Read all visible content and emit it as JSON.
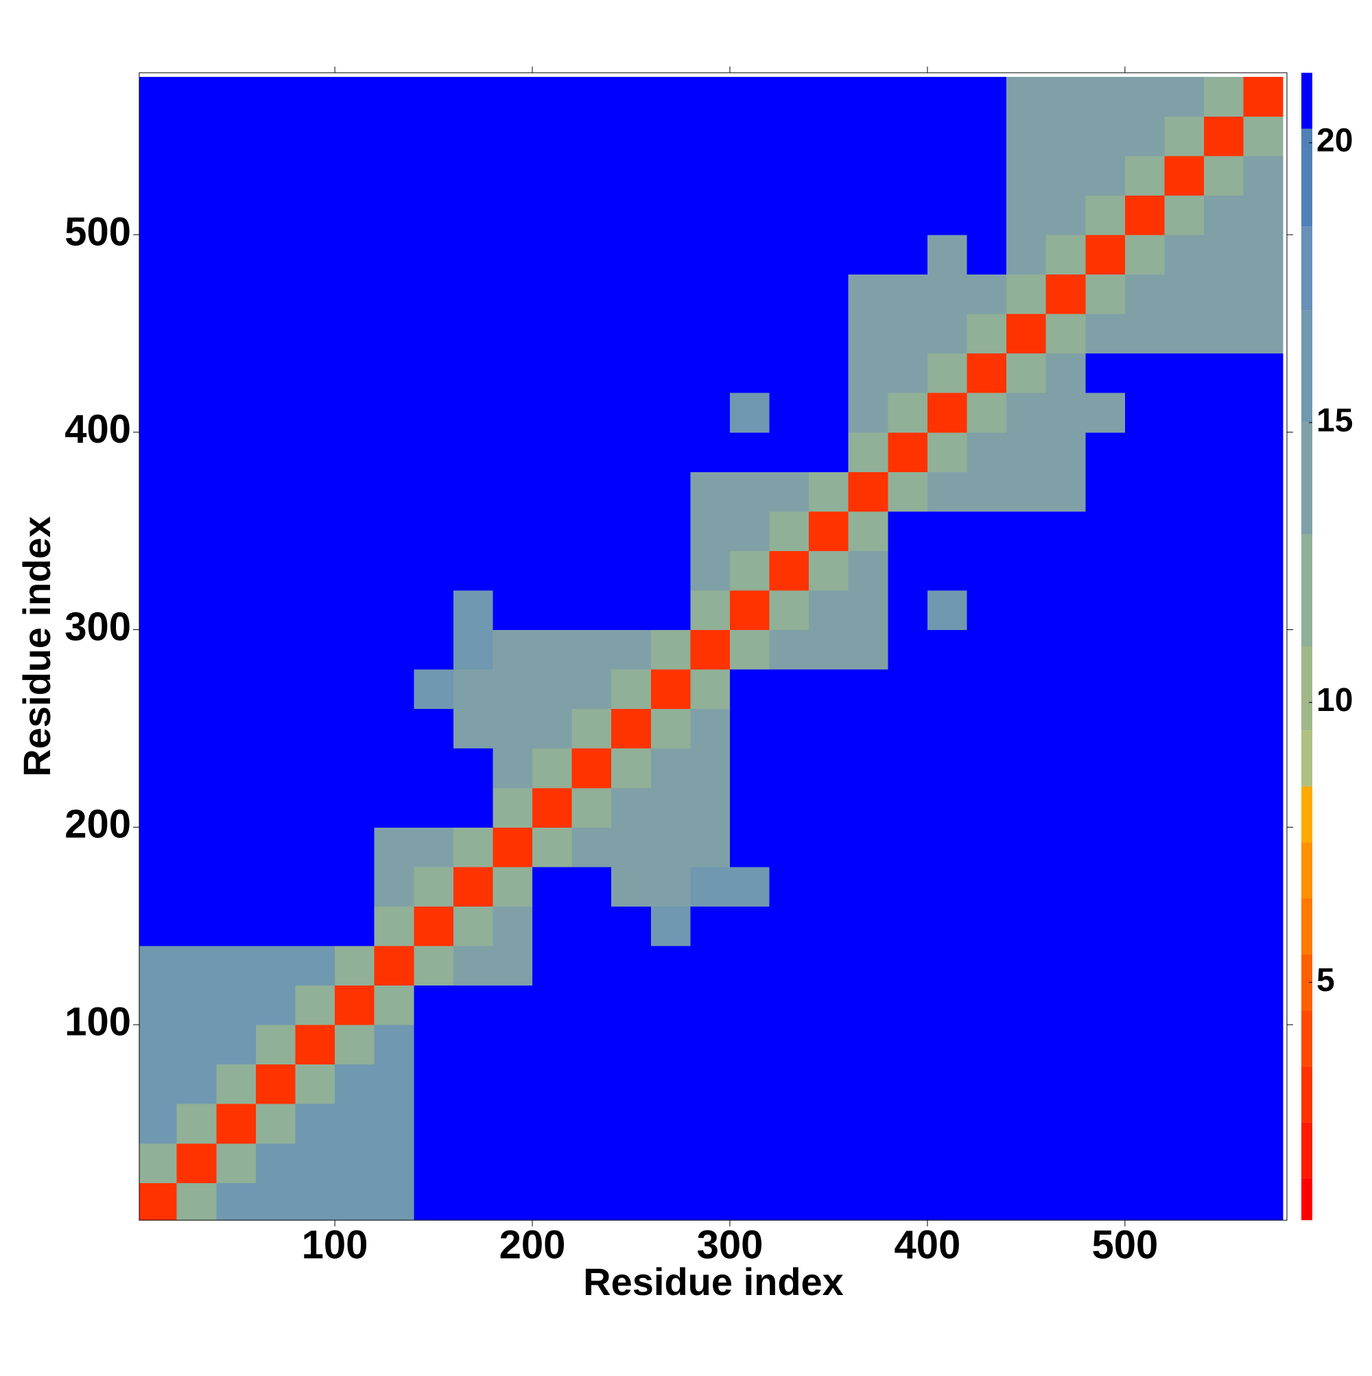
{
  "chart_data": {
    "type": "heatmap",
    "x_label": "Residue index",
    "y_label": "Residue index",
    "xlim": [
      1,
      582
    ],
    "ylim": [
      1,
      582
    ],
    "xticks": [
      100,
      200,
      300,
      400,
      500
    ],
    "yticks": [
      100,
      200,
      300,
      400,
      500
    ],
    "bin_edges": [
      0,
      20,
      40,
      60,
      80,
      100,
      120,
      140,
      160,
      180,
      200,
      220,
      240,
      260,
      280,
      300,
      320,
      340,
      360,
      380,
      400,
      420,
      440,
      460,
      480,
      500,
      520,
      540,
      560,
      580
    ],
    "zlim": [
      0.75,
      21.25
    ],
    "zticks": [
      5,
      10,
      15,
      20
    ],
    "colorscale": [
      [
        1.5,
        "#ff0000"
      ],
      [
        2.5,
        "#ff1a00"
      ],
      [
        3.5,
        "#ff3300"
      ],
      [
        4.5,
        "#ff4a00"
      ],
      [
        5.5,
        "#ff6000"
      ],
      [
        6.5,
        "#ff7800"
      ],
      [
        7.5,
        "#ff9000"
      ],
      [
        8.5,
        "#ffaa00"
      ],
      [
        9.5,
        "#b0c080"
      ],
      [
        11,
        "#a0b888"
      ],
      [
        13,
        "#90b098"
      ],
      [
        15,
        "#80a0a8"
      ],
      [
        17,
        "#7098b0"
      ],
      [
        18.5,
        "#6890b8"
      ],
      [
        20.25,
        "#5080b8"
      ],
      [
        21.25,
        "#0000ff"
      ]
    ],
    "z": [
      [
        3,
        13,
        16,
        16,
        16,
        16,
        16,
        21,
        21,
        21,
        21,
        21,
        21,
        21,
        21,
        21,
        21,
        21,
        21,
        21,
        21,
        21,
        21,
        21,
        21,
        21,
        21,
        21,
        21
      ],
      [
        13,
        3,
        13,
        16,
        16,
        16,
        16,
        21,
        21,
        21,
        21,
        21,
        21,
        21,
        21,
        21,
        21,
        21,
        21,
        21,
        21,
        21,
        21,
        21,
        21,
        21,
        21,
        21,
        21
      ],
      [
        16,
        13,
        3,
        13,
        16,
        16,
        16,
        21,
        21,
        21,
        21,
        21,
        21,
        21,
        21,
        21,
        21,
        21,
        21,
        21,
        21,
        21,
        21,
        21,
        21,
        21,
        21,
        21,
        21
      ],
      [
        16,
        16,
        13,
        3,
        13,
        16,
        16,
        21,
        21,
        21,
        21,
        21,
        21,
        21,
        21,
        21,
        21,
        21,
        21,
        21,
        21,
        21,
        21,
        21,
        21,
        21,
        21,
        21,
        21
      ],
      [
        16,
        16,
        16,
        13,
        3,
        13,
        16,
        21,
        21,
        21,
        21,
        21,
        21,
        21,
        21,
        21,
        21,
        21,
        21,
        21,
        21,
        21,
        21,
        21,
        21,
        21,
        21,
        21,
        21
      ],
      [
        16,
        16,
        16,
        16,
        13,
        3,
        13,
        21,
        21,
        21,
        21,
        21,
        21,
        21,
        21,
        21,
        21,
        21,
        21,
        21,
        21,
        21,
        21,
        21,
        21,
        21,
        21,
        21,
        21
      ],
      [
        16,
        16,
        16,
        16,
        16,
        13,
        3,
        13,
        15,
        15,
        21,
        21,
        21,
        21,
        21,
        21,
        21,
        21,
        21,
        21,
        21,
        21,
        21,
        21,
        21,
        21,
        21,
        21,
        21
      ],
      [
        21,
        21,
        21,
        21,
        21,
        21,
        13,
        3,
        13,
        15,
        21,
        21,
        21,
        17,
        21,
        21,
        21,
        21,
        21,
        21,
        21,
        21,
        21,
        21,
        21,
        21,
        21,
        21,
        21
      ],
      [
        21,
        21,
        21,
        21,
        21,
        21,
        15,
        13,
        3,
        13,
        21,
        21,
        14,
        15,
        17,
        17,
        21,
        21,
        21,
        21,
        21,
        21,
        21,
        21,
        21,
        21,
        21,
        21,
        21
      ],
      [
        21,
        21,
        21,
        21,
        21,
        21,
        15,
        15,
        13,
        3,
        13,
        15,
        15,
        15,
        15,
        21,
        21,
        21,
        21,
        21,
        21,
        21,
        21,
        21,
        21,
        21,
        21,
        21,
        21
      ],
      [
        21,
        21,
        21,
        21,
        21,
        21,
        21,
        21,
        21,
        13,
        3,
        13,
        15,
        15,
        15,
        21,
        21,
        21,
        21,
        21,
        21,
        21,
        21,
        21,
        21,
        21,
        21,
        21,
        21
      ],
      [
        21,
        21,
        21,
        21,
        21,
        21,
        21,
        21,
        21,
        15,
        13,
        3,
        13,
        15,
        15,
        21,
        21,
        21,
        21,
        21,
        21,
        21,
        21,
        21,
        21,
        21,
        21,
        21,
        21
      ],
      [
        21,
        21,
        21,
        21,
        21,
        21,
        21,
        21,
        14,
        15,
        15,
        13,
        3,
        13,
        15,
        21,
        21,
        21,
        21,
        21,
        21,
        21,
        21,
        21,
        21,
        21,
        21,
        21,
        21
      ],
      [
        21,
        21,
        21,
        21,
        21,
        21,
        21,
        17,
        15,
        15,
        15,
        15,
        13,
        3,
        13,
        21,
        21,
        21,
        21,
        21,
        21,
        21,
        21,
        21,
        21,
        21,
        21,
        21,
        21
      ],
      [
        21,
        21,
        21,
        21,
        21,
        21,
        21,
        21,
        17,
        15,
        15,
        15,
        15,
        13,
        3,
        13,
        15,
        15,
        15,
        21,
        21,
        21,
        21,
        21,
        21,
        21,
        21,
        21,
        21
      ],
      [
        21,
        21,
        21,
        21,
        21,
        21,
        21,
        21,
        17,
        21,
        21,
        21,
        21,
        21,
        13,
        3,
        13,
        15,
        15,
        21,
        16,
        21,
        21,
        21,
        21,
        21,
        21,
        21,
        21
      ],
      [
        21,
        21,
        21,
        21,
        21,
        21,
        21,
        21,
        21,
        21,
        21,
        21,
        21,
        21,
        15,
        13,
        3,
        13,
        15,
        21,
        21,
        21,
        21,
        21,
        21,
        21,
        21,
        21,
        21
      ],
      [
        21,
        21,
        21,
        21,
        21,
        21,
        21,
        21,
        21,
        21,
        21,
        21,
        21,
        21,
        15,
        15,
        13,
        3,
        13,
        21,
        21,
        21,
        21,
        21,
        21,
        21,
        21,
        21,
        21
      ],
      [
        21,
        21,
        21,
        21,
        21,
        21,
        21,
        21,
        21,
        21,
        21,
        21,
        21,
        21,
        15,
        15,
        15,
        13,
        3,
        13,
        15,
        15,
        15,
        15,
        21,
        21,
        21,
        21,
        21
      ],
      [
        21,
        21,
        21,
        21,
        21,
        21,
        21,
        21,
        21,
        21,
        21,
        21,
        21,
        21,
        21,
        21,
        21,
        21,
        13,
        3,
        13,
        15,
        15,
        15,
        21,
        21,
        21,
        21,
        21
      ],
      [
        21,
        21,
        21,
        21,
        21,
        21,
        21,
        21,
        21,
        21,
        21,
        21,
        21,
        21,
        21,
        16,
        21,
        21,
        15,
        13,
        3,
        13,
        15,
        15,
        15,
        21,
        21,
        21,
        21
      ],
      [
        21,
        21,
        21,
        21,
        21,
        21,
        21,
        21,
        21,
        21,
        21,
        21,
        21,
        21,
        21,
        21,
        21,
        21,
        15,
        15,
        13,
        3,
        13,
        15,
        21,
        21,
        21,
        21,
        21
      ],
      [
        21,
        21,
        21,
        21,
        21,
        21,
        21,
        21,
        21,
        21,
        21,
        21,
        21,
        21,
        21,
        21,
        21,
        21,
        15,
        15,
        15,
        13,
        3,
        13,
        15,
        15,
        15,
        15,
        15
      ],
      [
        21,
        21,
        21,
        21,
        21,
        21,
        21,
        21,
        21,
        21,
        21,
        21,
        21,
        21,
        21,
        21,
        21,
        21,
        15,
        15,
        15,
        15,
        13,
        3,
        13,
        15,
        15,
        15,
        15
      ],
      [
        21,
        21,
        21,
        21,
        21,
        21,
        21,
        21,
        21,
        21,
        21,
        21,
        21,
        21,
        21,
        21,
        21,
        21,
        21,
        21,
        15,
        21,
        15,
        13,
        3,
        13,
        15,
        15,
        15
      ],
      [
        21,
        21,
        21,
        21,
        21,
        21,
        21,
        21,
        21,
        21,
        21,
        21,
        21,
        21,
        21,
        21,
        21,
        21,
        21,
        21,
        21,
        21,
        15,
        15,
        13,
        3,
        13,
        15,
        15
      ],
      [
        21,
        21,
        21,
        21,
        21,
        21,
        21,
        21,
        21,
        21,
        21,
        21,
        21,
        21,
        21,
        21,
        21,
        21,
        21,
        21,
        21,
        21,
        15,
        15,
        15,
        13,
        3,
        13,
        15
      ],
      [
        21,
        21,
        21,
        21,
        21,
        21,
        21,
        21,
        21,
        21,
        21,
        21,
        21,
        21,
        21,
        21,
        21,
        21,
        21,
        21,
        21,
        21,
        15,
        15,
        15,
        15,
        13,
        3,
        13
      ],
      [
        21,
        21,
        21,
        21,
        21,
        21,
        21,
        21,
        21,
        21,
        21,
        21,
        21,
        21,
        21,
        21,
        21,
        21,
        21,
        21,
        21,
        21,
        15,
        15,
        15,
        15,
        15,
        13,
        3
      ]
    ]
  }
}
